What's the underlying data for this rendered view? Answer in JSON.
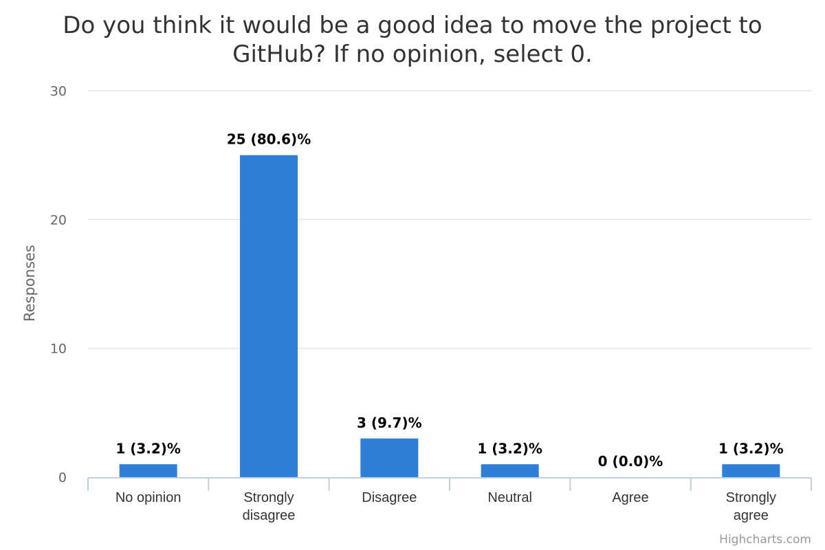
{
  "chart_data": {
    "type": "bar",
    "title_lines": [
      "Do you think it would be a good idea to move the project to",
      "GitHub? If no opinion, select 0."
    ],
    "ylabel": "Responses",
    "xlabel": "",
    "ylim": [
      0,
      30
    ],
    "yticks": [
      0,
      10,
      20,
      30
    ],
    "categories": [
      [
        "No opinion"
      ],
      [
        "Strongly",
        "disagree"
      ],
      [
        "Disagree"
      ],
      [
        "Neutral"
      ],
      [
        "Agree"
      ],
      [
        "Strongly",
        "agree"
      ]
    ],
    "values": [
      1,
      25,
      3,
      1,
      0,
      1
    ],
    "data_labels": [
      "1 (3.2)%",
      "25 (80.6)%",
      "3 (9.7)%",
      "1 (3.2)%",
      "0 (0.0)%",
      "1 (3.2)%"
    ],
    "color": "#2f7ed8",
    "grid": true,
    "legend": "none"
  },
  "credits": "Highcharts.com"
}
